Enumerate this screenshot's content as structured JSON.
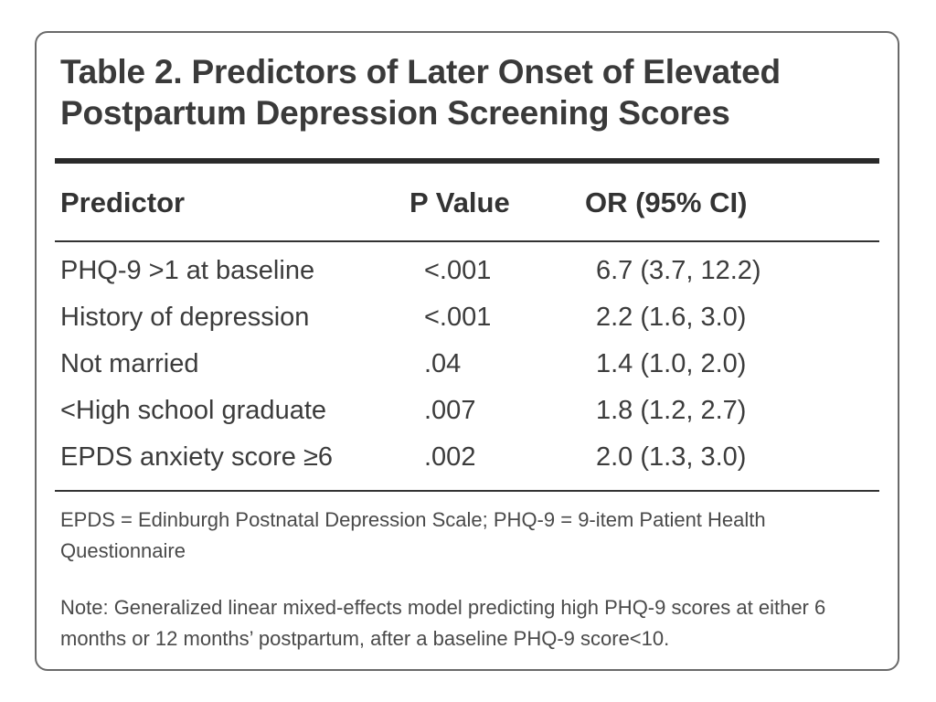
{
  "table": {
    "title": "Table 2. Predictors of Later Onset of Elevated Postpartum Depression Screening Scores",
    "headers": {
      "predictor": "Predictor",
      "p_value": "P Value",
      "or_ci": "OR (95% CI)"
    },
    "rows": [
      {
        "predictor": "PHQ-9 >1 at baseline",
        "p_value": "<.001",
        "or_ci": "6.7 (3.7, 12.2)"
      },
      {
        "predictor": "History of depression",
        "p_value": "<.001",
        "or_ci": "2.2 (1.6, 3.0)"
      },
      {
        "predictor": "Not married",
        "p_value": ".04",
        "or_ci": "1.4 (1.0, 2.0)"
      },
      {
        "predictor": "<High school graduate",
        "p_value": ".007",
        "or_ci": "1.8 (1.2, 2.7)"
      },
      {
        "predictor": "EPDS anxiety score ≥6",
        "p_value": ".002",
        "or_ci": "2.0 (1.3, 3.0)"
      }
    ],
    "abbreviations": "EPDS = Edinburgh Postnatal Depression Scale; PHQ-9 = 9-item Patient Health Questionnaire",
    "note": "Note: Generalized linear mixed-effects model predicting high PHQ-9 scores at either 6 months or 12 months’ postpartum, after a baseline PHQ-9 score<10."
  }
}
